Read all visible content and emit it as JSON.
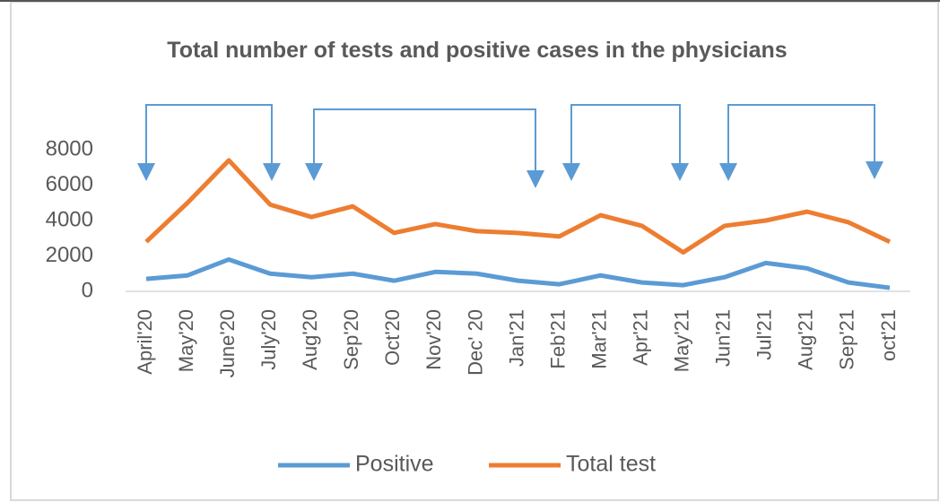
{
  "chart_data": {
    "type": "line",
    "title": "Total number of tests and positive cases in the physicians",
    "categories": [
      "April'20",
      "May'20",
      "June'20",
      "July'20",
      "Aug'20",
      "Sep'20",
      "Oct'20",
      "Nov'20",
      "Dec' 20",
      "Jan'21",
      "Feb'21",
      "Mar'21",
      "Apr'21",
      "May'21",
      "Jun'21",
      "Jul'21",
      "Aug'21",
      "Sep'21",
      "oct'21"
    ],
    "series": [
      {
        "name": "Positive",
        "color": "#5b9bd5",
        "values": [
          700,
          900,
          1800,
          1000,
          800,
          1000,
          600,
          1100,
          1000,
          600,
          400,
          900,
          500,
          350,
          800,
          1600,
          1300,
          500,
          200
        ]
      },
      {
        "name": "Total test",
        "color": "#ed7d31",
        "values": [
          2800,
          5000,
          7400,
          4900,
          4200,
          4800,
          3300,
          3800,
          3400,
          3300,
          3100,
          4300,
          3700,
          2200,
          3700,
          4000,
          4500,
          3900,
          2800
        ]
      }
    ],
    "ylim": [
      0,
      8000
    ],
    "yticks": [
      0,
      2000,
      4000,
      6000,
      8000
    ],
    "grid": false,
    "legend": "bottom"
  }
}
